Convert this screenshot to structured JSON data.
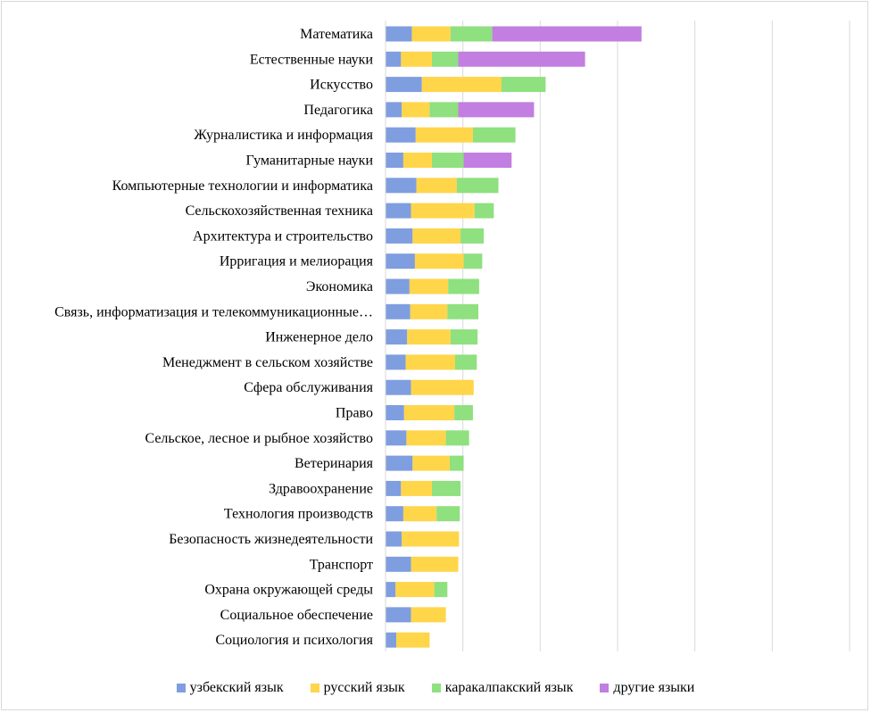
{
  "chart_data": {
    "type": "bar",
    "orientation": "horizontal",
    "stacked": true,
    "title": "",
    "xlabel": "",
    "ylabel": "",
    "xlim": [
      0,
      600
    ],
    "grid": true,
    "legend_position": "bottom",
    "categories": [
      "Математика",
      "Естественные науки",
      "Искусство",
      "Педагогика",
      "Журналистика и информация",
      "Гуманитарные науки",
      "Компьютерные технологии и информатика",
      "Сельскохозяйственная техника",
      "Архитектура и строительство",
      "Ирригация и мелиорация",
      "Экономика",
      "Связь, информатизация и телекоммуникационные…",
      "Инженерное дело",
      "Менеджмент в сельском хозяйстве",
      "Сфера обслуживания",
      "Право",
      "Сельское, лесное и рыбное хозяйство",
      "Ветеринария",
      "Здравоохранение",
      "Технология производств",
      "Безопасность жизнедеятельности",
      "Транспорт",
      "Охрана окружающей среды",
      "Социальное обеспечение",
      "Социология и психология"
    ],
    "series": [
      {
        "name": "узбекский язык",
        "color": "#7f9ee0",
        "values": [
          34,
          20,
          47,
          21,
          39,
          23,
          40,
          33,
          35,
          38,
          31,
          32,
          28,
          26,
          33,
          24,
          27,
          35,
          20,
          23,
          21,
          33,
          13,
          33,
          14
        ]
      },
      {
        "name": "русский язык",
        "color": "#ffd54a",
        "values": [
          50,
          40,
          103,
          36,
          74,
          37,
          52,
          82,
          62,
          63,
          50,
          48,
          56,
          64,
          81,
          65,
          51,
          48,
          40,
          43,
          74,
          61,
          50,
          45,
          43
        ]
      },
      {
        "name": "каракалпакский язык",
        "color": "#8fe07f",
        "values": [
          54,
          34,
          57,
          37,
          55,
          41,
          54,
          25,
          30,
          24,
          40,
          40,
          35,
          28,
          0,
          24,
          30,
          18,
          37,
          30,
          0,
          0,
          17,
          0,
          0
        ]
      },
      {
        "name": "другие языки",
        "color": "#c27ee0",
        "values": [
          193,
          164,
          0,
          98,
          0,
          62,
          0,
          0,
          0,
          0,
          0,
          0,
          0,
          0,
          0,
          0,
          0,
          0,
          0,
          0,
          0,
          0,
          0,
          0,
          0
        ]
      }
    ]
  },
  "legend": {
    "items": [
      {
        "label": "узбекский язык",
        "color": "#7f9ee0"
      },
      {
        "label": "русский язык",
        "color": "#ffd54a"
      },
      {
        "label": "каракалпакский язык",
        "color": "#8fe07f"
      },
      {
        "label": "другие языки",
        "color": "#c27ee0"
      }
    ]
  }
}
